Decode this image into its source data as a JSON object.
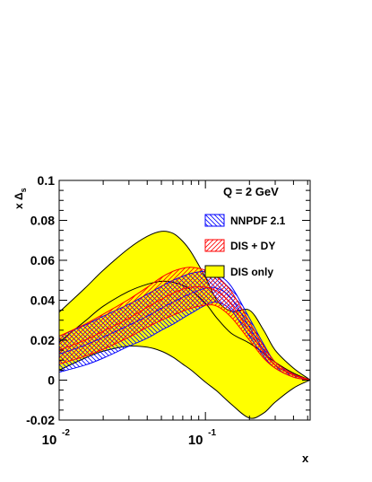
{
  "chart_data": {
    "type": "area",
    "title": "",
    "annotation": "Q = 2 GeV",
    "xlabel": "x",
    "ylabel": "x Δ_s",
    "ylabel_main": "x Δ",
    "ylabel_sub": "s",
    "x_scale": "log",
    "xlim": [
      0.01,
      0.52
    ],
    "ylim": [
      -0.02,
      0.1
    ],
    "yticks": [
      -0.02,
      0,
      0.02,
      0.04,
      0.06,
      0.08,
      0.1
    ],
    "ytick_labels": [
      "-0.02",
      "0",
      "0.02",
      "0.04",
      "0.06",
      "0.08",
      "0.1"
    ],
    "xtick_major": [
      0.01,
      0.1
    ],
    "xtick_labels": [
      {
        "base": "10",
        "exp": "-2"
      },
      {
        "base": "10",
        "exp": "-1"
      }
    ],
    "grid": false,
    "legend_position": "top-right",
    "x": [
      0.01,
      0.015,
      0.02,
      0.03,
      0.04,
      0.05,
      0.06,
      0.07,
      0.08,
      0.1,
      0.12,
      0.15,
      0.2,
      0.25,
      0.3,
      0.4,
      0.5,
      0.52
    ],
    "series": [
      {
        "name": "NNPDF 2.1",
        "color": "#0000ff",
        "fill": "hatch-blue",
        "upper": [
          0.022,
          0.0275,
          0.032,
          0.038,
          0.043,
          0.047,
          0.05,
          0.052,
          0.0535,
          0.0545,
          0.053,
          0.047,
          0.031,
          0.018,
          0.009,
          0.003,
          0.0005,
          0.0
        ],
        "central": [
          0.013,
          0.0175,
          0.0215,
          0.0275,
          0.032,
          0.036,
          0.039,
          0.0415,
          0.0435,
          0.046,
          0.046,
          0.041,
          0.0265,
          0.015,
          0.0075,
          0.0025,
          0.0003,
          0.0
        ],
        "lower": [
          0.004,
          0.0075,
          0.011,
          0.017,
          0.021,
          0.025,
          0.028,
          0.031,
          0.0335,
          0.0375,
          0.039,
          0.035,
          0.022,
          0.012,
          0.006,
          0.0015,
          0.0002,
          0.0
        ]
      },
      {
        "name": "DIS + DY",
        "color": "#ff0000",
        "fill": "hatch-red",
        "upper": [
          0.022,
          0.028,
          0.033,
          0.0405,
          0.0465,
          0.0515,
          0.0545,
          0.056,
          0.0565,
          0.055,
          0.0515,
          0.0445,
          0.029,
          0.017,
          0.009,
          0.003,
          0.0005,
          0.0
        ],
        "central": [
          0.015,
          0.02,
          0.0245,
          0.031,
          0.0365,
          0.0405,
          0.0435,
          0.0455,
          0.0465,
          0.0465,
          0.0445,
          0.038,
          0.0245,
          0.014,
          0.0075,
          0.0025,
          0.0003,
          0.0
        ],
        "lower": [
          0.008,
          0.012,
          0.0155,
          0.0215,
          0.0265,
          0.03,
          0.0325,
          0.0345,
          0.036,
          0.0375,
          0.037,
          0.0315,
          0.02,
          0.011,
          0.006,
          0.0015,
          0.0002,
          0.0
        ]
      },
      {
        "name": "DIS only",
        "color": "#ffff00",
        "fill": "solid-yellow",
        "upper": [
          0.034,
          0.046,
          0.055,
          0.066,
          0.072,
          0.0745,
          0.0735,
          0.0695,
          0.064,
          0.0515,
          0.04,
          0.0345,
          0.035,
          0.025,
          0.015,
          0.006,
          0.001,
          0.0
        ],
        "central": [
          0.019,
          0.0295,
          0.037,
          0.0445,
          0.048,
          0.0495,
          0.049,
          0.0475,
          0.045,
          0.0385,
          0.031,
          0.0235,
          0.0185,
          0.0135,
          0.009,
          0.0035,
          0.0005,
          0.0
        ],
        "lower": [
          0.005,
          0.011,
          0.0145,
          0.017,
          0.0165,
          0.0145,
          0.0115,
          0.008,
          0.005,
          -0.001,
          -0.0055,
          -0.012,
          -0.019,
          -0.0165,
          -0.011,
          -0.004,
          -0.0005,
          0.0
        ]
      }
    ]
  }
}
